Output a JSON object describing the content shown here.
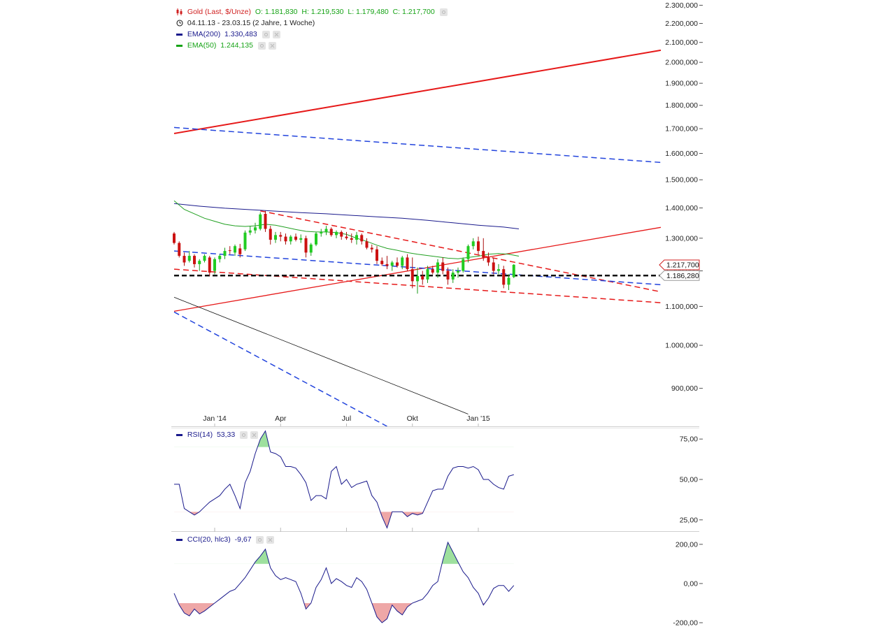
{
  "legend": {
    "main": {
      "icon": "candlestick-icon",
      "name": "Gold (Last, $/Unze)",
      "open": "O: 1.181,830",
      "high": "H: 1.219,530",
      "low": "L: 1.179,480",
      "close": "C: 1.217,700"
    },
    "range": {
      "icon": "clock-icon",
      "text": "04.11.13 - 23.03.15 (2 Jahre, 1 Woche)"
    },
    "ema200": {
      "label": "EMA(200)",
      "value": "1.330,483",
      "color": "#1a1a8c"
    },
    "ema50": {
      "label": "EMA(50)",
      "value": "1.244,135",
      "color": "#16a316"
    },
    "rsi": {
      "label": "RSI(14)",
      "value": "53,33",
      "color": "#1a1a8c"
    },
    "cci": {
      "label": "CCI(20, hlc3)",
      "value": "-9,67",
      "color": "#1a1a8c"
    }
  },
  "price_markers": {
    "last": "1.217,700",
    "level": "1.186,280"
  },
  "colors": {
    "up": "#22cc22",
    "down": "#cc1111",
    "ema200": "#1a1a8c",
    "ema50": "#22a022",
    "red_line": "#e61919",
    "blue_line": "#2244dd",
    "osc": "#1a1a8c"
  },
  "chart_data": [
    {
      "type": "candlestick",
      "title": "Gold (Last, $/Unze)",
      "ylim": [
        820,
        2310
      ],
      "y_ticks": [
        "900,000",
        "1.000,000",
        "1.100,000",
        "1.200,000",
        "1.300,000",
        "1.400,000",
        "1.500,000",
        "1.600,000",
        "1.700,000",
        "1.800,000",
        "1.900,000",
        "2.000,000",
        "2.100,000",
        "2.200,000",
        "2.300,000"
      ],
      "y_tick_values": [
        900,
        1000,
        1100,
        1200,
        1300,
        1400,
        1500,
        1600,
        1700,
        1800,
        1900,
        2000,
        2100,
        2200,
        2300
      ],
      "x_ticks": [
        "Jan '14",
        "Apr",
        "Jul",
        "Okt",
        "Jan '15"
      ],
      "x_tick_weeks": [
        8,
        21,
        34,
        47,
        60
      ],
      "weeks": 73,
      "ohlc": [
        [
          1315,
          1320,
          1280,
          1285
        ],
        [
          1285,
          1290,
          1240,
          1245
        ],
        [
          1245,
          1255,
          1215,
          1225
        ],
        [
          1230,
          1260,
          1225,
          1245
        ],
        [
          1245,
          1250,
          1210,
          1220
        ],
        [
          1220,
          1235,
          1200,
          1230
        ],
        [
          1230,
          1250,
          1225,
          1245
        ],
        [
          1240,
          1245,
          1185,
          1195
        ],
        [
          1200,
          1240,
          1190,
          1235
        ],
        [
          1235,
          1250,
          1225,
          1245
        ],
        [
          1245,
          1270,
          1235,
          1260
        ],
        [
          1262,
          1275,
          1250,
          1260
        ],
        [
          1255,
          1280,
          1245,
          1275
        ],
        [
          1268,
          1282,
          1240,
          1250
        ],
        [
          1265,
          1325,
          1260,
          1318
        ],
        [
          1318,
          1340,
          1310,
          1325
        ],
        [
          1325,
          1350,
          1315,
          1335
        ],
        [
          1330,
          1385,
          1325,
          1378
        ],
        [
          1380,
          1390,
          1320,
          1330
        ],
        [
          1330,
          1340,
          1280,
          1295
        ],
        [
          1295,
          1320,
          1285,
          1310
        ],
        [
          1310,
          1320,
          1290,
          1305
        ],
        [
          1305,
          1315,
          1280,
          1290
        ],
        [
          1290,
          1310,
          1280,
          1305
        ],
        [
          1305,
          1315,
          1290,
          1295
        ],
        [
          1295,
          1312,
          1285,
          1300
        ],
        [
          1300,
          1308,
          1240,
          1255
        ],
        [
          1255,
          1285,
          1245,
          1280
        ],
        [
          1280,
          1320,
          1275,
          1315
        ],
        [
          1315,
          1330,
          1305,
          1320
        ],
        [
          1320,
          1340,
          1310,
          1330
        ],
        [
          1330,
          1335,
          1305,
          1310
        ],
        [
          1310,
          1325,
          1300,
          1320
        ],
        [
          1320,
          1325,
          1295,
          1305
        ],
        [
          1305,
          1320,
          1295,
          1300
        ],
        [
          1300,
          1315,
          1285,
          1295
        ],
        [
          1295,
          1320,
          1280,
          1310
        ],
        [
          1310,
          1315,
          1280,
          1290
        ],
        [
          1290,
          1300,
          1265,
          1270
        ],
        [
          1270,
          1280,
          1255,
          1265
        ],
        [
          1265,
          1275,
          1220,
          1230
        ],
        [
          1230,
          1240,
          1215,
          1220
        ],
        [
          1220,
          1245,
          1205,
          1215
        ],
        [
          1215,
          1230,
          1200,
          1225
        ],
        [
          1225,
          1240,
          1210,
          1215
        ],
        [
          1215,
          1245,
          1205,
          1240
        ],
        [
          1240,
          1250,
          1200,
          1205
        ],
        [
          1205,
          1240,
          1150,
          1170
        ],
        [
          1170,
          1210,
          1135,
          1185
        ],
        [
          1185,
          1200,
          1160,
          1175
        ],
        [
          1175,
          1215,
          1165,
          1205
        ],
        [
          1205,
          1215,
          1190,
          1195
        ],
        [
          1195,
          1235,
          1180,
          1225
        ],
        [
          1225,
          1240,
          1190,
          1200
        ],
        [
          1200,
          1210,
          1160,
          1175
        ],
        [
          1175,
          1205,
          1165,
          1195
        ],
        [
          1195,
          1210,
          1180,
          1200
        ],
        [
          1200,
          1240,
          1195,
          1235
        ],
        [
          1235,
          1280,
          1225,
          1275
        ],
        [
          1275,
          1300,
          1265,
          1290
        ],
        [
          1290,
          1305,
          1250,
          1260
        ],
        [
          1260,
          1300,
          1230,
          1240
        ],
        [
          1240,
          1255,
          1215,
          1225
        ],
        [
          1225,
          1240,
          1190,
          1200
        ],
        [
          1200,
          1220,
          1190,
          1205
        ],
        [
          1205,
          1215,
          1150,
          1160
        ],
        [
          1160,
          1190,
          1145,
          1180
        ],
        [
          1182,
          1220,
          1179,
          1218
        ]
      ],
      "ema200": [
        [
          0,
          1415
        ],
        [
          5,
          1406
        ],
        [
          10,
          1399
        ],
        [
          15,
          1394
        ],
        [
          20,
          1389
        ],
        [
          25,
          1384
        ],
        [
          30,
          1380
        ],
        [
          35,
          1375
        ],
        [
          40,
          1370
        ],
        [
          45,
          1365
        ],
        [
          50,
          1358
        ],
        [
          55,
          1350
        ],
        [
          60,
          1342
        ],
        [
          65,
          1336
        ],
        [
          68,
          1330
        ]
      ],
      "ema50": [
        [
          0,
          1425
        ],
        [
          2,
          1395
        ],
        [
          4,
          1380
        ],
        [
          6,
          1365
        ],
        [
          8,
          1355
        ],
        [
          10,
          1345
        ],
        [
          12,
          1340
        ],
        [
          14,
          1338
        ],
        [
          16,
          1340
        ],
        [
          18,
          1345
        ],
        [
          20,
          1342
        ],
        [
          22,
          1335
        ],
        [
          24,
          1328
        ],
        [
          26,
          1322
        ],
        [
          28,
          1320
        ],
        [
          30,
          1320
        ],
        [
          32,
          1318
        ],
        [
          34,
          1312
        ],
        [
          36,
          1300
        ],
        [
          38,
          1290
        ],
        [
          40,
          1278
        ],
        [
          42,
          1268
        ],
        [
          44,
          1262
        ],
        [
          46,
          1255
        ],
        [
          48,
          1250
        ],
        [
          50,
          1246
        ],
        [
          52,
          1242
        ],
        [
          54,
          1238
        ],
        [
          56,
          1236
        ],
        [
          58,
          1240
        ],
        [
          60,
          1244
        ],
        [
          62,
          1250
        ],
        [
          64,
          1252
        ],
        [
          66,
          1250
        ],
        [
          68,
          1244
        ]
      ],
      "trendlines": [
        {
          "color": "red",
          "dash": false,
          "w": 2,
          "from": [
            0,
            1680
          ],
          "to": [
            96,
            2060
          ]
        },
        {
          "color": "red",
          "dash": false,
          "w": 1.3,
          "from": [
            0,
            1087
          ],
          "to": [
            96,
            1335
          ]
        },
        {
          "color": "red",
          "dash": true,
          "w": 1.5,
          "from": [
            17,
            1390
          ],
          "to": [
            96,
            1140
          ]
        },
        {
          "color": "red",
          "dash": true,
          "w": 1.5,
          "from": [
            0,
            1205
          ],
          "to": [
            96,
            1110
          ]
        },
        {
          "color": "blue",
          "dash": true,
          "w": 1.5,
          "from": [
            0,
            1705
          ],
          "to": [
            96,
            1565
          ]
        },
        {
          "color": "blue",
          "dash": true,
          "w": 1.5,
          "from": [
            0,
            1260
          ],
          "to": [
            96,
            1160
          ]
        },
        {
          "color": "blue",
          "dash": true,
          "w": 1.5,
          "from": [
            0,
            1085
          ],
          "to": [
            42,
            820
          ]
        },
        {
          "color": "black",
          "dash": false,
          "w": 0.8,
          "from": [
            0,
            1125
          ],
          "to": [
            58,
            845
          ]
        },
        {
          "color": "black",
          "dash": true,
          "w": 2.5,
          "from": [
            0,
            1186.28
          ],
          "to": [
            96,
            1186.28
          ]
        }
      ]
    },
    {
      "type": "line",
      "title": "RSI(14)",
      "ylim": [
        18,
        82
      ],
      "y_ticks": [
        "25,00",
        "50,00",
        "75,00"
      ],
      "y_tick_values": [
        25,
        50,
        75
      ],
      "overbought": 70,
      "oversold": 30,
      "values": [
        47,
        47,
        32,
        30,
        28,
        30,
        33,
        36,
        38,
        40,
        44,
        47,
        40,
        32,
        48,
        55,
        66,
        75,
        80,
        67,
        66,
        64,
        58,
        58,
        57,
        53,
        48,
        37,
        40,
        40,
        38,
        55,
        58,
        47,
        50,
        45,
        47,
        48,
        49,
        40,
        36,
        27,
        20,
        30,
        30,
        30,
        27,
        29,
        28,
        29,
        36,
        43,
        44,
        44,
        52,
        57,
        58,
        58,
        57,
        58,
        56,
        50,
        50,
        47,
        45,
        44,
        52,
        53
      ]
    },
    {
      "type": "line",
      "title": "CCI(20, hlc3)",
      "ylim": [
        -250,
        260
      ],
      "y_ticks": [
        "-200,00",
        "0,00",
        "200,00"
      ],
      "y_tick_values": [
        -200,
        0,
        200
      ],
      "overbought": 100,
      "oversold": -100,
      "values": [
        -50,
        -110,
        -150,
        -165,
        -130,
        -155,
        -140,
        -120,
        -100,
        -80,
        -60,
        -40,
        -30,
        0,
        30,
        70,
        110,
        140,
        175,
        80,
        40,
        20,
        30,
        20,
        10,
        -50,
        -130,
        -100,
        -20,
        20,
        80,
        0,
        25,
        10,
        -10,
        -20,
        30,
        10,
        -30,
        -100,
        -170,
        -200,
        -180,
        -110,
        -140,
        -160,
        -120,
        -100,
        -90,
        -80,
        -50,
        -10,
        10,
        120,
        210,
        160,
        110,
        60,
        30,
        -20,
        -50,
        -110,
        -75,
        -25,
        -10,
        -10,
        -40,
        -10
      ]
    }
  ]
}
